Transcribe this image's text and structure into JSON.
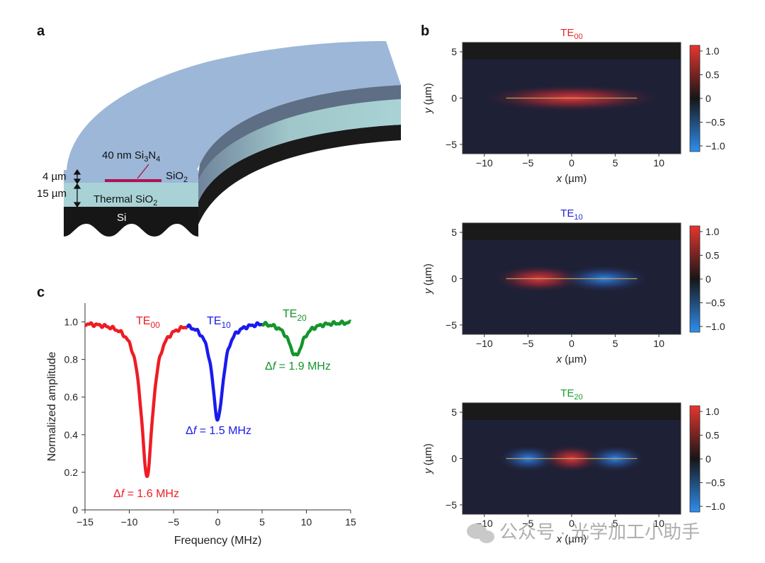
{
  "panel_a": {
    "label": "a",
    "si3n4_label": "40 nm Si",
    "si3n4_sub1": "3",
    "si3n4_mid": "N",
    "si3n4_sub2": "4",
    "sio2_label": "SiO",
    "sio2_sub": "2",
    "thermal_label": "Thermal SiO",
    "thermal_sub": "2",
    "si_label": "Si",
    "dim_top": "4 µm",
    "dim_bottom": "15 µm",
    "colors": {
      "cladding": "#9db8d9",
      "thermal": "#a8d2d7",
      "substrate": "#1c1c1c",
      "nitride": "#b0114f"
    }
  },
  "panel_b": {
    "label": "b",
    "modes": [
      {
        "title_main": "TE",
        "title_sub": "00",
        "title_color": "#e8242b",
        "lobes": [
          1
        ]
      },
      {
        "title_main": "TE",
        "title_sub": "10",
        "title_color": "#1f1fd6",
        "lobes": [
          1,
          -1
        ]
      },
      {
        "title_main": "TE",
        "title_sub": "20",
        "title_color": "#159d2a",
        "lobes": [
          -1,
          1,
          -1
        ]
      }
    ],
    "x_ticks": [
      "−10",
      "−5",
      "0",
      "5",
      "10"
    ],
    "y_ticks": [
      "5",
      "0",
      "−5"
    ],
    "x_label_var": "x",
    "x_label_unit": " (µm)",
    "y_label_var": "y",
    "y_label_unit": " (µm)",
    "colorbar_ticks": [
      "1.0",
      "0.5",
      "0",
      "−0.5",
      "−1.0"
    ]
  },
  "chart_data": {
    "type": "line",
    "label": "c",
    "xlabel": "Frequency (MHz)",
    "ylabel": "Normalized amplitude",
    "xlim": [
      -15,
      15
    ],
    "ylim": [
      0,
      1.1
    ],
    "x_ticks": [
      "−15",
      "−10",
      "−5",
      "0",
      "5",
      "10",
      "15"
    ],
    "y_ticks": [
      "0",
      "0.2",
      "0.4",
      "0.6",
      "0.8",
      "1.0"
    ],
    "series": [
      {
        "name": "TE00",
        "color": "#ee1c25",
        "x_range": [
          -15,
          -3.5
        ],
        "center": -8,
        "depth": 0.82,
        "fwhm": 1.6
      },
      {
        "name": "TE10",
        "color": "#1a1aee",
        "x_range": [
          -3.5,
          5
        ],
        "center": 0,
        "depth": 0.52,
        "fwhm": 1.5
      },
      {
        "name": "TE20",
        "color": "#14952a",
        "x_range": [
          5,
          15
        ],
        "center": 8.8,
        "depth": 0.18,
        "fwhm": 1.9
      }
    ],
    "annotations": [
      {
        "label_main": "TE",
        "label_sub": "00",
        "color": "#ee1c25"
      },
      {
        "label_main": "TE",
        "label_sub": "10",
        "color": "#1a1aee"
      },
      {
        "label_main": "TE",
        "label_sub": "20",
        "color": "#14952a"
      },
      {
        "prefix": "Δ",
        "var": "f",
        "value": " = 1.6 MHz",
        "color": "#ee1c25"
      },
      {
        "prefix": "Δ",
        "var": "f",
        "value": " = 1.5 MHz",
        "color": "#1a1aee"
      },
      {
        "prefix": "Δ",
        "var": "f",
        "value": " = 1.9 MHz",
        "color": "#14952a"
      }
    ]
  },
  "watermark": {
    "text": "公众号 · 光学加工小助手"
  }
}
